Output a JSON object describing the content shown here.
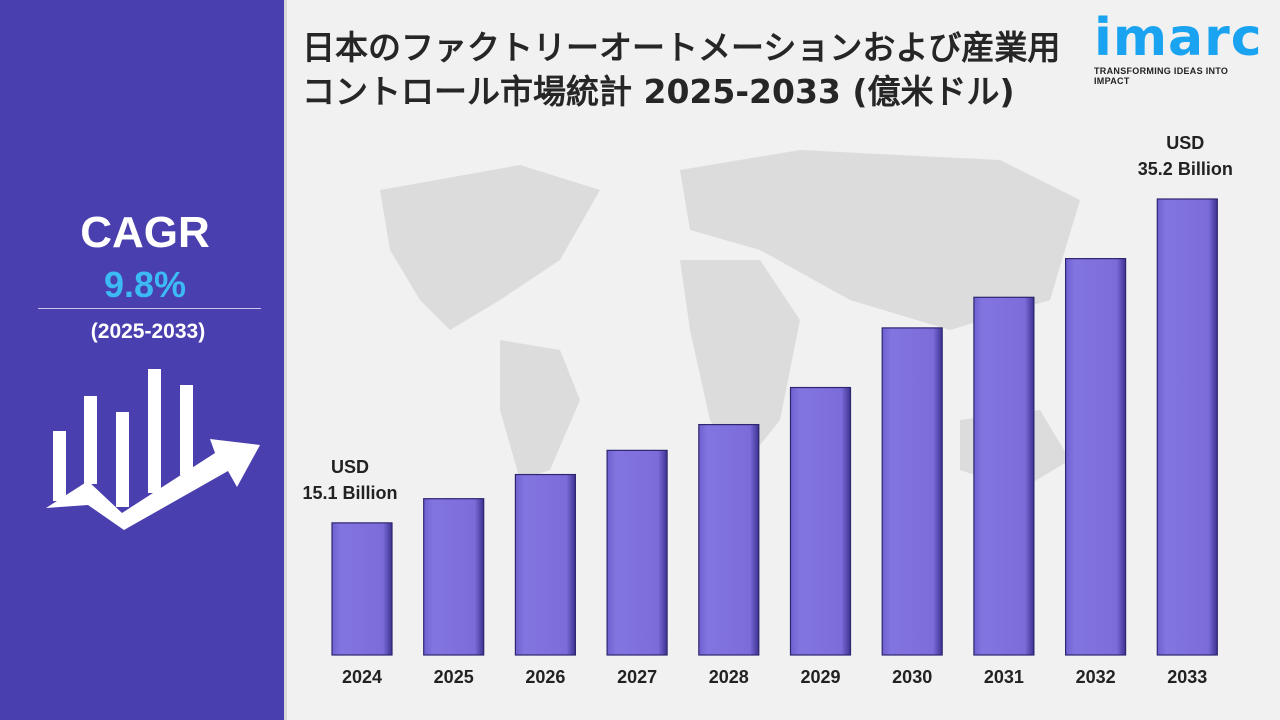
{
  "title": "日本のファクトリーオートメーションおよび産業用コントロール市場統計 2025-2033 (億米ドル)",
  "logo": {
    "word": "imarc",
    "tagline": "TRANSFORMING IDEAS INTO IMPACT"
  },
  "cagr": {
    "label": "CAGR",
    "value": "9.8%",
    "period": "(2025-2033)"
  },
  "colors": {
    "panel": "#4a3fae",
    "bar": "#7d6fdc",
    "cagr": "#3cbaf5",
    "brand": "#1aa3f0"
  },
  "chart_data": {
    "type": "bar",
    "title": "日本のファクトリーオートメーションおよび産業用コントロール市場統計 2025-2033 (億米ドル)",
    "categories": [
      "2024",
      "2025",
      "2026",
      "2027",
      "2028",
      "2029",
      "2030",
      "2031",
      "2032",
      "2033"
    ],
    "values": [
      15.1,
      16.6,
      18.1,
      19.6,
      21.2,
      23.5,
      27.2,
      29.1,
      31.5,
      35.2
    ],
    "unit": "USD Billion",
    "ylim": [
      6.9,
      40
    ],
    "grid": false,
    "annotations": [
      {
        "category": "2024",
        "line1": "USD",
        "line2": "15.1 Billion"
      },
      {
        "category": "2033",
        "line1": "USD",
        "line2": "35.2 Billion"
      }
    ]
  }
}
